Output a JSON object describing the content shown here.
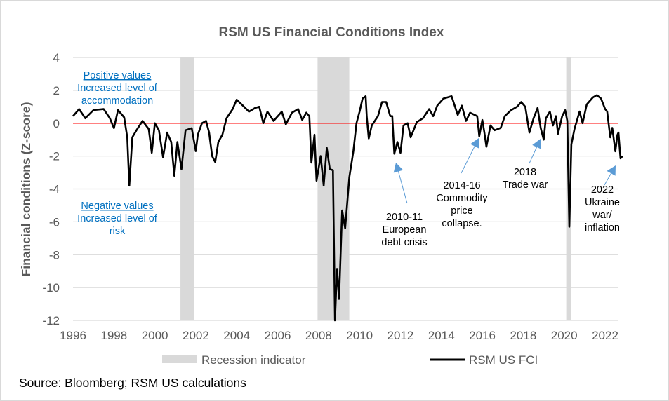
{
  "chart_data": {
    "type": "line",
    "title": "RSM US Financial Conditions Index",
    "xlabel": "",
    "ylabel": "Financial conditions (Z-score)",
    "xlim": [
      1996,
      2022.9
    ],
    "ylim": [
      -12,
      4
    ],
    "x_ticks": [
      "1996",
      "1998",
      "2000",
      "2002",
      "2004",
      "2006",
      "2008",
      "2010",
      "2012",
      "2014",
      "2016",
      "2018",
      "2020",
      "2022"
    ],
    "y_ticks": [
      "4",
      "2",
      "0",
      "-2",
      "-4",
      "-6",
      "-8",
      "-10",
      "-12"
    ],
    "grid": "horizontal",
    "zero_line_color": "#FF0000",
    "line_color": "#000000",
    "recession_color": "#D9D9D9",
    "recessions": [
      [
        2001.25,
        2001.9
      ],
      [
        2007.95,
        2009.5
      ],
      [
        2020.1,
        2020.35
      ]
    ],
    "legend": {
      "placement": "bottom",
      "recession_label": "Recession indicator",
      "series_label": "RSM US FCI"
    },
    "series": [
      {
        "name": "RSM US FCI",
        "points": [
          [
            1996.0,
            0.43
          ],
          [
            1996.3,
            0.86
          ],
          [
            1996.6,
            0.3
          ],
          [
            1997.0,
            0.8
          ],
          [
            1997.5,
            0.86
          ],
          [
            1997.8,
            0.3
          ],
          [
            1998.0,
            -0.3
          ],
          [
            1998.2,
            0.8
          ],
          [
            1998.5,
            0.35
          ],
          [
            1998.65,
            -0.86
          ],
          [
            1998.75,
            -3.8
          ],
          [
            1998.9,
            -0.86
          ],
          [
            1999.1,
            -0.43
          ],
          [
            1999.4,
            0.14
          ],
          [
            1999.7,
            -0.36
          ],
          [
            1999.85,
            -1.8
          ],
          [
            2000.0,
            0.0
          ],
          [
            2000.2,
            -0.43
          ],
          [
            2000.4,
            -2.07
          ],
          [
            2000.6,
            -0.57
          ],
          [
            2000.8,
            -1.14
          ],
          [
            2000.95,
            -3.2
          ],
          [
            2001.1,
            -1.14
          ],
          [
            2001.3,
            -2.8
          ],
          [
            2001.5,
            -0.43
          ],
          [
            2001.8,
            -0.3
          ],
          [
            2002.0,
            -1.7
          ],
          [
            2002.1,
            -0.7
          ],
          [
            2002.3,
            0.0
          ],
          [
            2002.5,
            0.14
          ],
          [
            2002.65,
            -0.57
          ],
          [
            2002.8,
            -2.0
          ],
          [
            2002.95,
            -2.36
          ],
          [
            2003.1,
            -1.14
          ],
          [
            2003.3,
            -0.7
          ],
          [
            2003.5,
            0.3
          ],
          [
            2003.8,
            0.86
          ],
          [
            2004.0,
            1.43
          ],
          [
            2004.3,
            1.07
          ],
          [
            2004.6,
            0.7
          ],
          [
            2004.9,
            0.93
          ],
          [
            2005.1,
            1.0
          ],
          [
            2005.3,
            0.0
          ],
          [
            2005.5,
            0.7
          ],
          [
            2005.8,
            0.14
          ],
          [
            2006.2,
            0.7
          ],
          [
            2006.4,
            -0.07
          ],
          [
            2006.7,
            0.64
          ],
          [
            2007.0,
            0.86
          ],
          [
            2007.2,
            0.2
          ],
          [
            2007.4,
            0.64
          ],
          [
            2007.55,
            0.43
          ],
          [
            2007.65,
            -2.4
          ],
          [
            2007.8,
            -0.7
          ],
          [
            2007.9,
            -3.5
          ],
          [
            2008.1,
            -2.0
          ],
          [
            2008.25,
            -3.8
          ],
          [
            2008.4,
            -1.5
          ],
          [
            2008.55,
            -2.8
          ],
          [
            2008.7,
            -2.86
          ],
          [
            2008.8,
            -12.0
          ],
          [
            2008.9,
            -8.86
          ],
          [
            2009.0,
            -10.7
          ],
          [
            2009.15,
            -5.3
          ],
          [
            2009.3,
            -6.4
          ],
          [
            2009.5,
            -3.3
          ],
          [
            2009.7,
            -1.7
          ],
          [
            2009.85,
            0.0
          ],
          [
            2010.0,
            0.7
          ],
          [
            2010.15,
            1.5
          ],
          [
            2010.3,
            1.64
          ],
          [
            2010.35,
            0.43
          ],
          [
            2010.45,
            -0.93
          ],
          [
            2010.6,
            -0.14
          ],
          [
            2010.9,
            0.43
          ],
          [
            2011.1,
            1.29
          ],
          [
            2011.3,
            1.29
          ],
          [
            2011.5,
            0.43
          ],
          [
            2011.6,
            0.43
          ],
          [
            2011.7,
            -1.86
          ],
          [
            2011.85,
            -1.14
          ],
          [
            2012.0,
            -1.8
          ],
          [
            2012.15,
            -0.14
          ],
          [
            2012.35,
            0.0
          ],
          [
            2012.5,
            -0.86
          ],
          [
            2012.8,
            0.07
          ],
          [
            2013.1,
            0.3
          ],
          [
            2013.4,
            0.86
          ],
          [
            2013.6,
            0.43
          ],
          [
            2013.8,
            1.07
          ],
          [
            2014.1,
            1.5
          ],
          [
            2014.5,
            1.64
          ],
          [
            2014.8,
            0.5
          ],
          [
            2015.0,
            1.07
          ],
          [
            2015.2,
            0.14
          ],
          [
            2015.4,
            0.64
          ],
          [
            2015.75,
            0.43
          ],
          [
            2015.85,
            -0.79
          ],
          [
            2016.0,
            0.2
          ],
          [
            2016.1,
            -0.57
          ],
          [
            2016.2,
            -1.43
          ],
          [
            2016.4,
            -0.14
          ],
          [
            2016.6,
            -0.43
          ],
          [
            2016.9,
            -0.29
          ],
          [
            2017.1,
            0.43
          ],
          [
            2017.4,
            0.79
          ],
          [
            2017.7,
            1.0
          ],
          [
            2017.9,
            1.29
          ],
          [
            2018.1,
            1.0
          ],
          [
            2018.3,
            -0.57
          ],
          [
            2018.5,
            0.29
          ],
          [
            2018.7,
            0.93
          ],
          [
            2018.85,
            -0.29
          ],
          [
            2019.0,
            -1.0
          ],
          [
            2019.1,
            0.29
          ],
          [
            2019.3,
            0.71
          ],
          [
            2019.45,
            -0.14
          ],
          [
            2019.6,
            0.43
          ],
          [
            2019.7,
            -0.64
          ],
          [
            2019.9,
            0.43
          ],
          [
            2020.05,
            0.79
          ],
          [
            2020.15,
            0.14
          ],
          [
            2020.25,
            -6.3
          ],
          [
            2020.35,
            -1.29
          ],
          [
            2020.5,
            -0.36
          ],
          [
            2020.75,
            0.71
          ],
          [
            2020.9,
            0.0
          ],
          [
            2021.1,
            1.14
          ],
          [
            2021.4,
            1.57
          ],
          [
            2021.6,
            1.71
          ],
          [
            2021.8,
            1.5
          ],
          [
            2022.0,
            0.86
          ],
          [
            2022.1,
            0.71
          ],
          [
            2022.25,
            -0.86
          ],
          [
            2022.35,
            -0.29
          ],
          [
            2022.5,
            -1.71
          ],
          [
            2022.6,
            -0.71
          ],
          [
            2022.65,
            -0.57
          ],
          [
            2022.75,
            -2.14
          ],
          [
            2022.85,
            -2.0
          ]
        ]
      }
    ],
    "region_notes": {
      "positive": [
        "Positive values",
        "Increased level of",
        "accommodation"
      ],
      "negative": [
        "Negative values",
        "Increased level of",
        "risk"
      ]
    },
    "annotations": [
      {
        "lines": [
          "2010-11",
          "European",
          "debt crisis"
        ],
        "target": [
          2011.7,
          -2.4
        ]
      },
      {
        "lines": [
          "2014-16",
          "Commodity",
          "price",
          "collapse."
        ],
        "target": [
          2016.0,
          -0.9
        ]
      },
      {
        "lines": [
          "2018",
          "Trade war"
        ],
        "target": [
          2019.0,
          -1.0
        ]
      },
      {
        "lines": [
          "2022",
          "Ukraine",
          "war/",
          "inflation"
        ],
        "target": [
          2022.7,
          -2.5
        ]
      }
    ],
    "annotation_arrow_color": "#5B9BD5",
    "note_color": "#0070C0"
  },
  "source": "Source: Bloomberg; RSM US calculations"
}
